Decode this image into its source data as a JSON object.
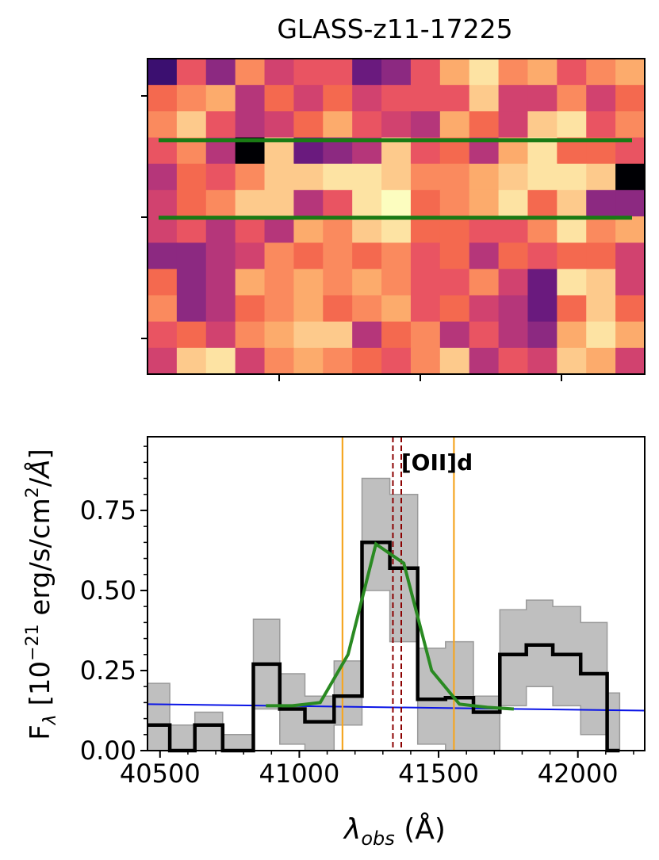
{
  "title": "GLASS-z11-17225",
  "colors": {
    "spectrum": "#000000",
    "error_band": "#bfbfbf",
    "model": "#2a8a22",
    "continuum": "#0a14e6",
    "window_lines": "#f5a623",
    "line_markers": "#8b0000",
    "aperture_lines": "#1a7a14"
  },
  "chart_data": [
    {
      "type": "heatmap",
      "name": "2D spectrum cutout",
      "colormap": "magma",
      "rows": 12,
      "cols": 17,
      "aperture_rows": [
        3.1,
        6.05
      ]
    },
    {
      "type": "line",
      "xlabel": "λobs (Å)",
      "ylabel": "Fλ [10−21 erg/s/cm2/Å]",
      "xlim": [
        40455,
        42240
      ],
      "ylim": [
        0,
        0.98
      ],
      "xticks": [
        40500,
        41000,
        41500,
        42000
      ],
      "xtick_labels": [
        "40500",
        "41000",
        "41500",
        "42000"
      ],
      "yticks": [
        0,
        0.25,
        0.5,
        0.75
      ],
      "ytick_labels": [
        "0.00",
        "0.25",
        "0.50",
        "0.75"
      ],
      "line_label": "[OII]d",
      "line_markers_x": [
        41336,
        41366
      ],
      "window_lines_x": [
        41155,
        41555
      ],
      "spectrum_step": {
        "edges": [
          40455,
          40535,
          40625,
          40725,
          40835,
          40930,
          41020,
          41125,
          41225,
          41325,
          41425,
          41525,
          41625,
          41720,
          41815,
          41910,
          42010,
          42105,
          42150
        ],
        "values": [
          0.08,
          0,
          0.08,
          0,
          0.27,
          0.13,
          0.09,
          0.17,
          0.65,
          0.57,
          0.16,
          0.165,
          0.12,
          0.3,
          0.33,
          0.3,
          0.24,
          0
        ]
      },
      "error_band": {
        "lower": [
          0,
          0,
          0,
          0,
          0.13,
          0.02,
          0,
          0.08,
          0.5,
          0.34,
          0.02,
          0,
          0,
          0.14,
          0.2,
          0.14,
          0.05,
          0
        ],
        "upper": [
          0.21,
          0.08,
          0.12,
          0.05,
          0.41,
          0.24,
          0.17,
          0.28,
          0.85,
          0.8,
          0.32,
          0.34,
          0.17,
          0.44,
          0.47,
          0.45,
          0.4,
          0.18
        ]
      },
      "model": {
        "x": [
          40880,
          40975,
          41075,
          41175,
          41275,
          41375,
          41475,
          41575,
          41675,
          41770
        ],
        "y": [
          0.14,
          0.14,
          0.15,
          0.3,
          0.645,
          0.585,
          0.25,
          0.145,
          0.135,
          0.13
        ]
      },
      "continuum": {
        "x": [
          40455,
          42240
        ],
        "y": [
          0.145,
          0.125
        ]
      }
    }
  ]
}
